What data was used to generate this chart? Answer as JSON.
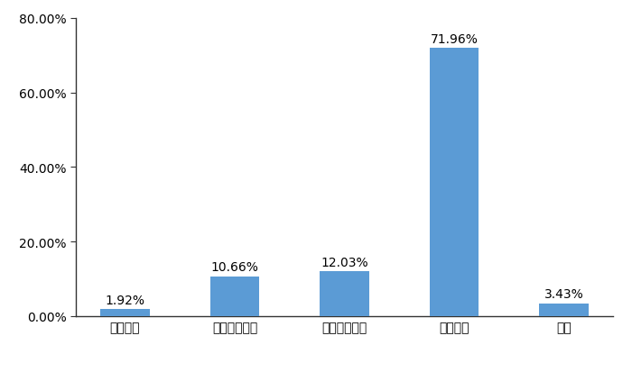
{
  "categories": [
    "微型货车",
    "蓝牌轻型货车",
    "黄牌中型货车",
    "重型货车",
    "其他"
  ],
  "values": [
    1.92,
    10.66,
    12.03,
    71.96,
    3.43
  ],
  "labels": [
    "1.92%",
    "10.66%",
    "12.03%",
    "71.96%",
    "3.43%"
  ],
  "bar_color": "#5B9BD5",
  "ylim": [
    0,
    80
  ],
  "yticks": [
    0,
    20,
    40,
    60,
    80
  ],
  "ytick_labels": [
    "0.00%",
    "20.00%",
    "40.00%",
    "60.00%",
    "80.00%"
  ],
  "background_color": "#FFFFFF",
  "bar_width": 0.45,
  "label_fontsize": 10,
  "tick_fontsize": 10
}
